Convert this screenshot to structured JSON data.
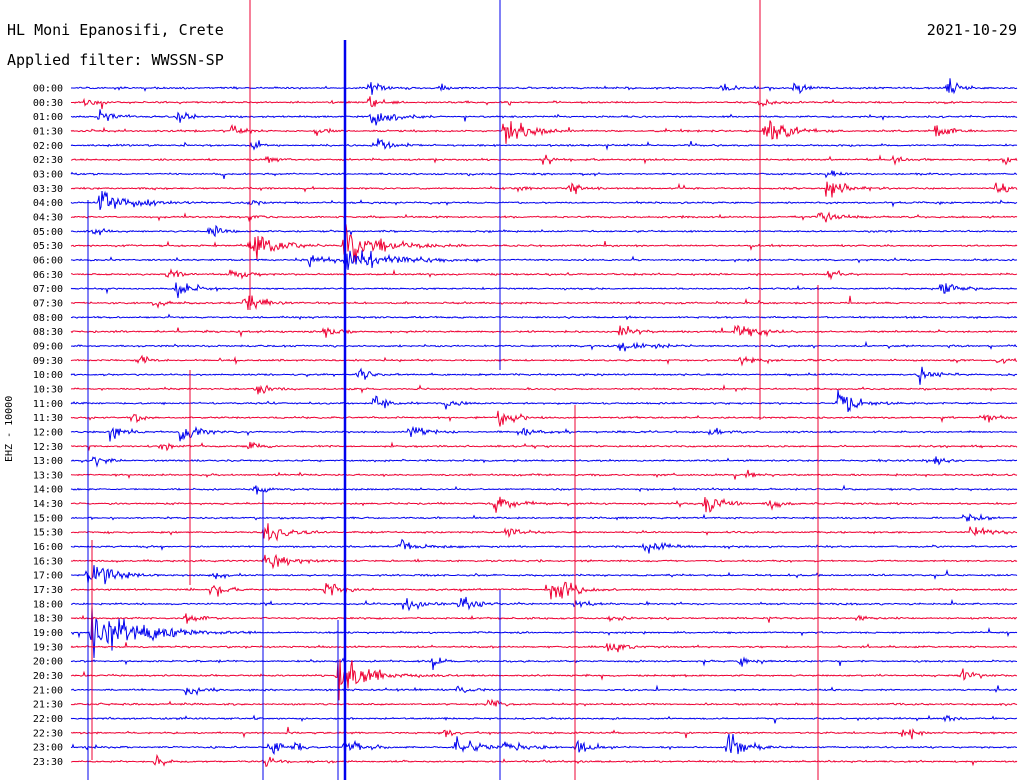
{
  "header": {
    "station": "HL Moni Epanosifi, Crete",
    "filter": "Applied filter: WWSSN-SP",
    "date": "2021-10-29"
  },
  "channel_label": "EHZ - 10000",
  "colors": {
    "trace_a": "#0000ee",
    "trace_b": "#ee0033",
    "background": "#ffffff",
    "text": "#000000"
  },
  "chart_data": {
    "type": "line",
    "plot_type": "helicorder",
    "station": "HL Moni Epanosifi, Crete",
    "date": "2021-10-29",
    "filter": "WWSSN-SP",
    "channel": "EHZ",
    "scale": 10000,
    "row_duration_minutes": 30,
    "row_labels": [
      "00:00",
      "00:30",
      "01:00",
      "01:30",
      "02:00",
      "02:30",
      "03:00",
      "03:30",
      "04:00",
      "04:30",
      "05:00",
      "05:30",
      "06:00",
      "06:30",
      "07:00",
      "07:30",
      "08:00",
      "08:30",
      "09:00",
      "09:30",
      "10:00",
      "10:30",
      "11:00",
      "11:30",
      "12:00",
      "12:30",
      "13:00",
      "13:30",
      "14:00",
      "14:30",
      "15:00",
      "15:30",
      "16:00",
      "16:30",
      "17:00",
      "17:30",
      "18:00",
      "18:30",
      "19:00",
      "19:30",
      "20:00",
      "20:30",
      "21:00",
      "21:30",
      "22:00",
      "22:30",
      "23:00",
      "23:30"
    ],
    "row_colors": [
      "#0000ee",
      "#ee0033"
    ]
  }
}
